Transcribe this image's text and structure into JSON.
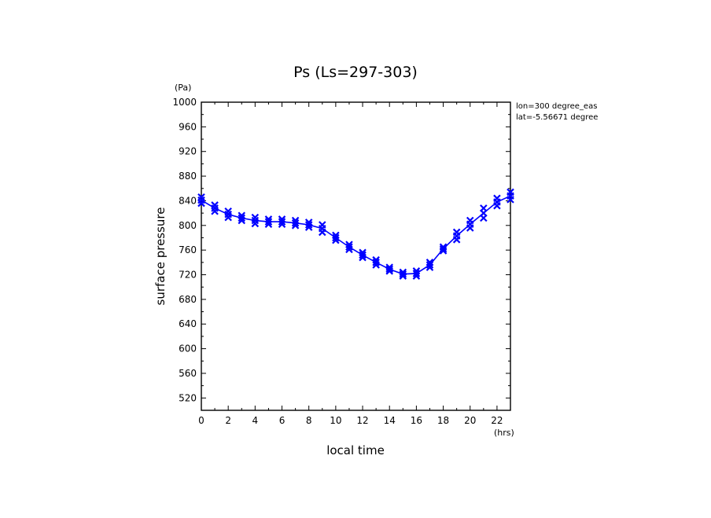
{
  "chart_data": {
    "type": "line",
    "title": "Ps (Ls=297-303)",
    "xlabel": "local time",
    "ylabel": "surface pressure",
    "x_unit": "(hrs)",
    "y_unit": "(Pa)",
    "xlim": [
      0,
      23
    ],
    "ylim": [
      500,
      1000
    ],
    "x_ticks": [
      "0",
      "2",
      "4",
      "6",
      "8",
      "10",
      "12",
      "14",
      "16",
      "18",
      "20",
      "22"
    ],
    "y_ticks": [
      "520",
      "560",
      "600",
      "640",
      "680",
      "720",
      "760",
      "800",
      "840",
      "880",
      "920",
      "960",
      "1000"
    ],
    "annotations": [
      "lon=300 degree_eas",
      "lat=-5.56671 degree"
    ],
    "grid": false,
    "line_color": "#0000ff",
    "series": [
      {
        "x": [
          0,
          1,
          2,
          3,
          4,
          5,
          6,
          7,
          8,
          9,
          10,
          11,
          12,
          13,
          14,
          15,
          16,
          17,
          18,
          19,
          20,
          21,
          22,
          23
        ],
        "values": [
          841,
          828,
          818,
          812,
          808,
          806,
          806,
          804,
          801,
          795,
          780,
          765,
          752,
          740,
          729,
          721,
          722,
          736,
          762,
          783,
          802,
          820,
          838,
          848
        ],
        "spread": [
          5,
          5,
          5,
          4,
          5,
          4,
          4,
          4,
          4,
          6,
          4,
          4,
          4,
          4,
          3,
          3,
          4,
          4,
          3,
          6,
          6,
          8,
          6,
          6
        ]
      }
    ]
  }
}
